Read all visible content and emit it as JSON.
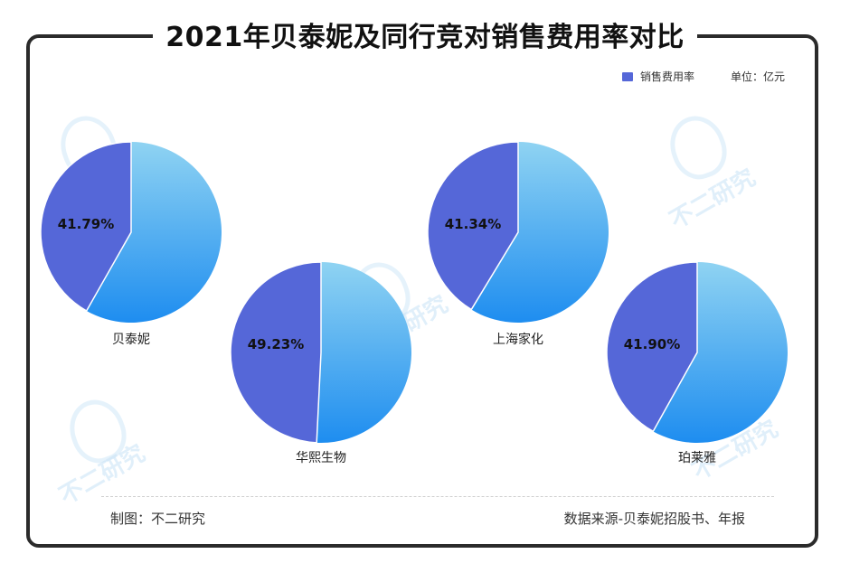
{
  "header": {
    "title": "2021年贝泰妮及同行竞对销售费用率对比"
  },
  "legend": {
    "label": "销售费用率",
    "unit": "单位：亿元",
    "color": "#5567d8"
  },
  "watermark": {
    "text": "不二研究"
  },
  "footer": {
    "left": "制图：不二研究",
    "right": "数据来源-贝泰妮招股书、年报"
  },
  "chart_data": {
    "type": "pie",
    "series_name": "销售费用率",
    "colors": {
      "highlight": "#5567d8",
      "rest_light": "#8fd3f2",
      "rest_dark": "#1e8df0"
    },
    "charts": [
      {
        "name": "贝泰妮",
        "value": 41.79,
        "label": "41.79%"
      },
      {
        "name": "华熙生物",
        "value": 49.23,
        "label": "49.23%"
      },
      {
        "name": "上海家化",
        "value": 41.34,
        "label": "41.34%"
      },
      {
        "name": "珀莱雅",
        "value": 41.9,
        "label": "41.90%"
      }
    ]
  }
}
